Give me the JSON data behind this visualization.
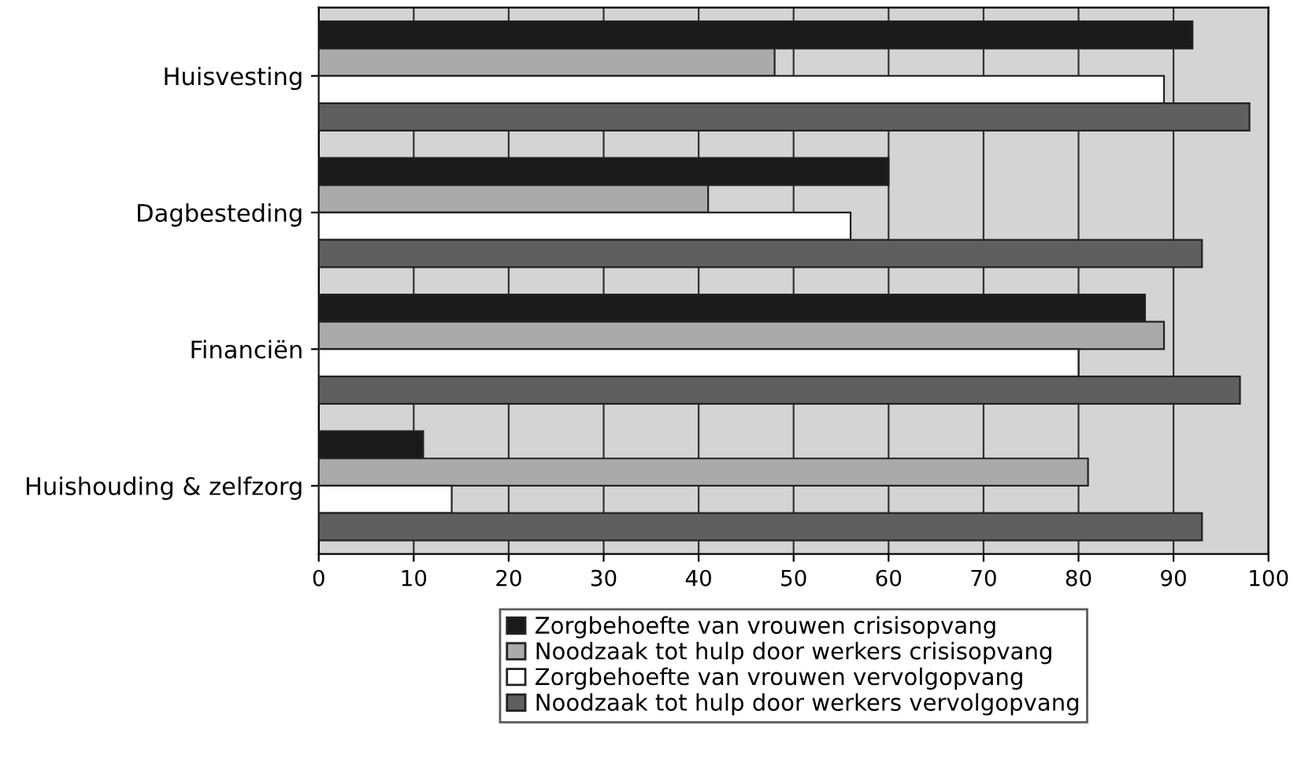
{
  "chart_data": {
    "type": "bar",
    "orientation": "horizontal",
    "categories": [
      "Huisvesting",
      "Dagbesteding",
      "Financiën",
      "Huishouding & zelfzorg"
    ],
    "series": [
      {
        "name": "Zorgbehoefte van vrouwen crisisopvang",
        "color": "#1a1a1a",
        "values": [
          92,
          60,
          87,
          11
        ]
      },
      {
        "name": "Noodzaak tot hulp door werkers crisisopvang",
        "color": "#aaaaaa",
        "values": [
          48,
          41,
          89,
          81
        ]
      },
      {
        "name": "Zorgbehoefte van vrouwen vervolgopvang",
        "color": "#ffffff",
        "values": [
          89,
          56,
          80,
          14
        ]
      },
      {
        "name": "Noodzaak tot hulp door werkers vervolgopvang",
        "color": "#5f5f5f",
        "values": [
          98,
          93,
          97,
          93
        ]
      }
    ],
    "xlim": [
      0,
      100
    ],
    "xticks": [
      0,
      10,
      20,
      30,
      40,
      50,
      60,
      70,
      80,
      90,
      100
    ],
    "grid": "x",
    "legend": "bottom"
  }
}
